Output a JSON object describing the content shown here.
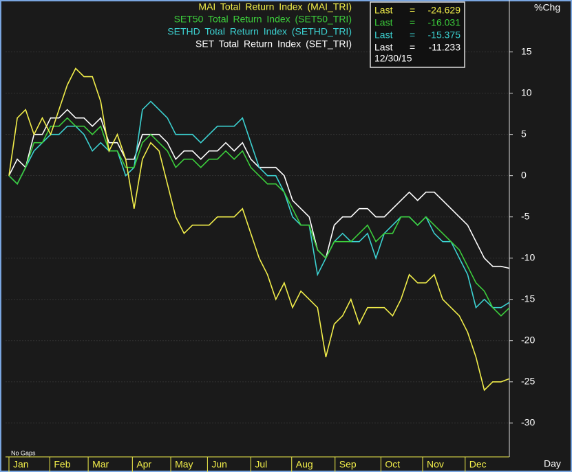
{
  "chart_data": {
    "type": "line",
    "y_label": "%Chg",
    "x_label": "Day",
    "note": "No Gaps",
    "info_box": {
      "label": "Last",
      "separator": "=",
      "date": "12/30/15"
    },
    "x": [
      0,
      1,
      2,
      3,
      4,
      5,
      6,
      7,
      8,
      9,
      10,
      11,
      12,
      13,
      14,
      15,
      16,
      17,
      18,
      19,
      20,
      21,
      22,
      23,
      24,
      25,
      26,
      27,
      28,
      29,
      30,
      31,
      32,
      33,
      34,
      35,
      36,
      37,
      38,
      39,
      40,
      41,
      42,
      43,
      44,
      45,
      46,
      47,
      48,
      49,
      50,
      51,
      52,
      53,
      54,
      55,
      56,
      57,
      58,
      59,
      60
    ],
    "xlim": [
      0,
      60
    ],
    "xticks": [
      {
        "value": 0,
        "label": "Jan"
      },
      {
        "value": 4.9,
        "label": "Feb"
      },
      {
        "value": 9.5,
        "label": "Mar"
      },
      {
        "value": 14.8,
        "label": "Apr"
      },
      {
        "value": 19.4,
        "label": "May"
      },
      {
        "value": 23.8,
        "label": "Jun"
      },
      {
        "value": 29,
        "label": "Jul"
      },
      {
        "value": 33.9,
        "label": "Aug"
      },
      {
        "value": 39.1,
        "label": "Sep"
      },
      {
        "value": 44.6,
        "label": "Oct"
      },
      {
        "value": 49.6,
        "label": "Nov"
      },
      {
        "value": 54.7,
        "label": "Dec"
      }
    ],
    "ylim": [
      -34.1,
      21.3
    ],
    "yticks": [
      -30,
      -25,
      -20,
      -15,
      -10,
      -5,
      0,
      5,
      10,
      15
    ],
    "grid": true,
    "series": [
      {
        "name": "MAI  Total Return Index (MAI_TRI)",
        "color": "#f2ee4a",
        "values": [
          0,
          7,
          8,
          5,
          7,
          5,
          8,
          11,
          13,
          12,
          12,
          9,
          3,
          5,
          2,
          -4,
          2,
          4,
          3,
          -1,
          -5,
          -7,
          -6,
          -6,
          -6,
          -5,
          -5,
          -5,
          -4,
          -7,
          -10,
          -12,
          -15,
          -13,
          -16,
          -14,
          -15,
          -16,
          -22,
          -18,
          -17,
          -15,
          -18,
          -16,
          -16,
          -16,
          -17,
          -15,
          -12,
          -13,
          -13,
          -12,
          -15,
          -16,
          -17,
          -19,
          -22,
          -26,
          -25,
          -25,
          -24.629
        ]
      },
      {
        "name": "SET50  Total Return Index (SET50_TRI)",
        "color": "#3ccf3c",
        "values": [
          0,
          -1,
          1,
          4,
          4,
          6,
          6,
          7,
          6,
          6,
          5,
          6,
          3,
          3,
          1,
          1,
          4,
          5,
          4,
          3,
          1,
          2,
          2,
          1,
          2,
          2,
          3,
          2,
          3,
          1,
          0,
          -1,
          -1,
          -2,
          -4,
          -6,
          -6,
          -9,
          -10,
          -8,
          -8,
          -8,
          -7,
          -6,
          -8,
          -7,
          -7,
          -5,
          -5,
          -6,
          -5,
          -6,
          -7,
          -8,
          -9,
          -11,
          -13,
          -14,
          -16,
          -17,
          -16.031
        ]
      },
      {
        "name": "SETHD  Total Return Index (SETHD_TRI)",
        "color": "#3cd2d2",
        "values": [
          0,
          -1,
          1,
          3,
          4,
          5,
          5,
          6,
          6,
          5,
          3,
          4,
          3,
          3,
          0,
          1,
          8,
          9,
          8,
          7,
          5,
          5,
          5,
          4,
          5,
          6,
          6,
          6,
          7,
          4,
          1,
          0,
          0,
          -2,
          -5,
          -6,
          -6,
          -12,
          -10,
          -8,
          -7,
          -8,
          -8,
          -7,
          -10,
          -7,
          -6,
          -5,
          -5,
          -6,
          -5,
          -7,
          -8,
          -8,
          -10,
          -12,
          -16,
          -15,
          -16,
          -16,
          -15.375
        ]
      },
      {
        "name": "SET  Total Return Index (SET_TRI)",
        "color": "#ffffff",
        "values": [
          0,
          2,
          1,
          5,
          5,
          7,
          7,
          8,
          7,
          7,
          6,
          7,
          4,
          4,
          2,
          2,
          5,
          5,
          5,
          4,
          2,
          3,
          3,
          2,
          3,
          3,
          4,
          3,
          4,
          2,
          1,
          1,
          1,
          0,
          -3,
          -4,
          -5,
          -9,
          -10,
          -6,
          -5,
          -5,
          -4,
          -4,
          -5,
          -5,
          -4,
          -3,
          -2,
          -3,
          -2,
          -2,
          -3,
          -4,
          -5,
          -6,
          -8,
          -10,
          -11,
          -11,
          -11.233
        ]
      }
    ]
  }
}
